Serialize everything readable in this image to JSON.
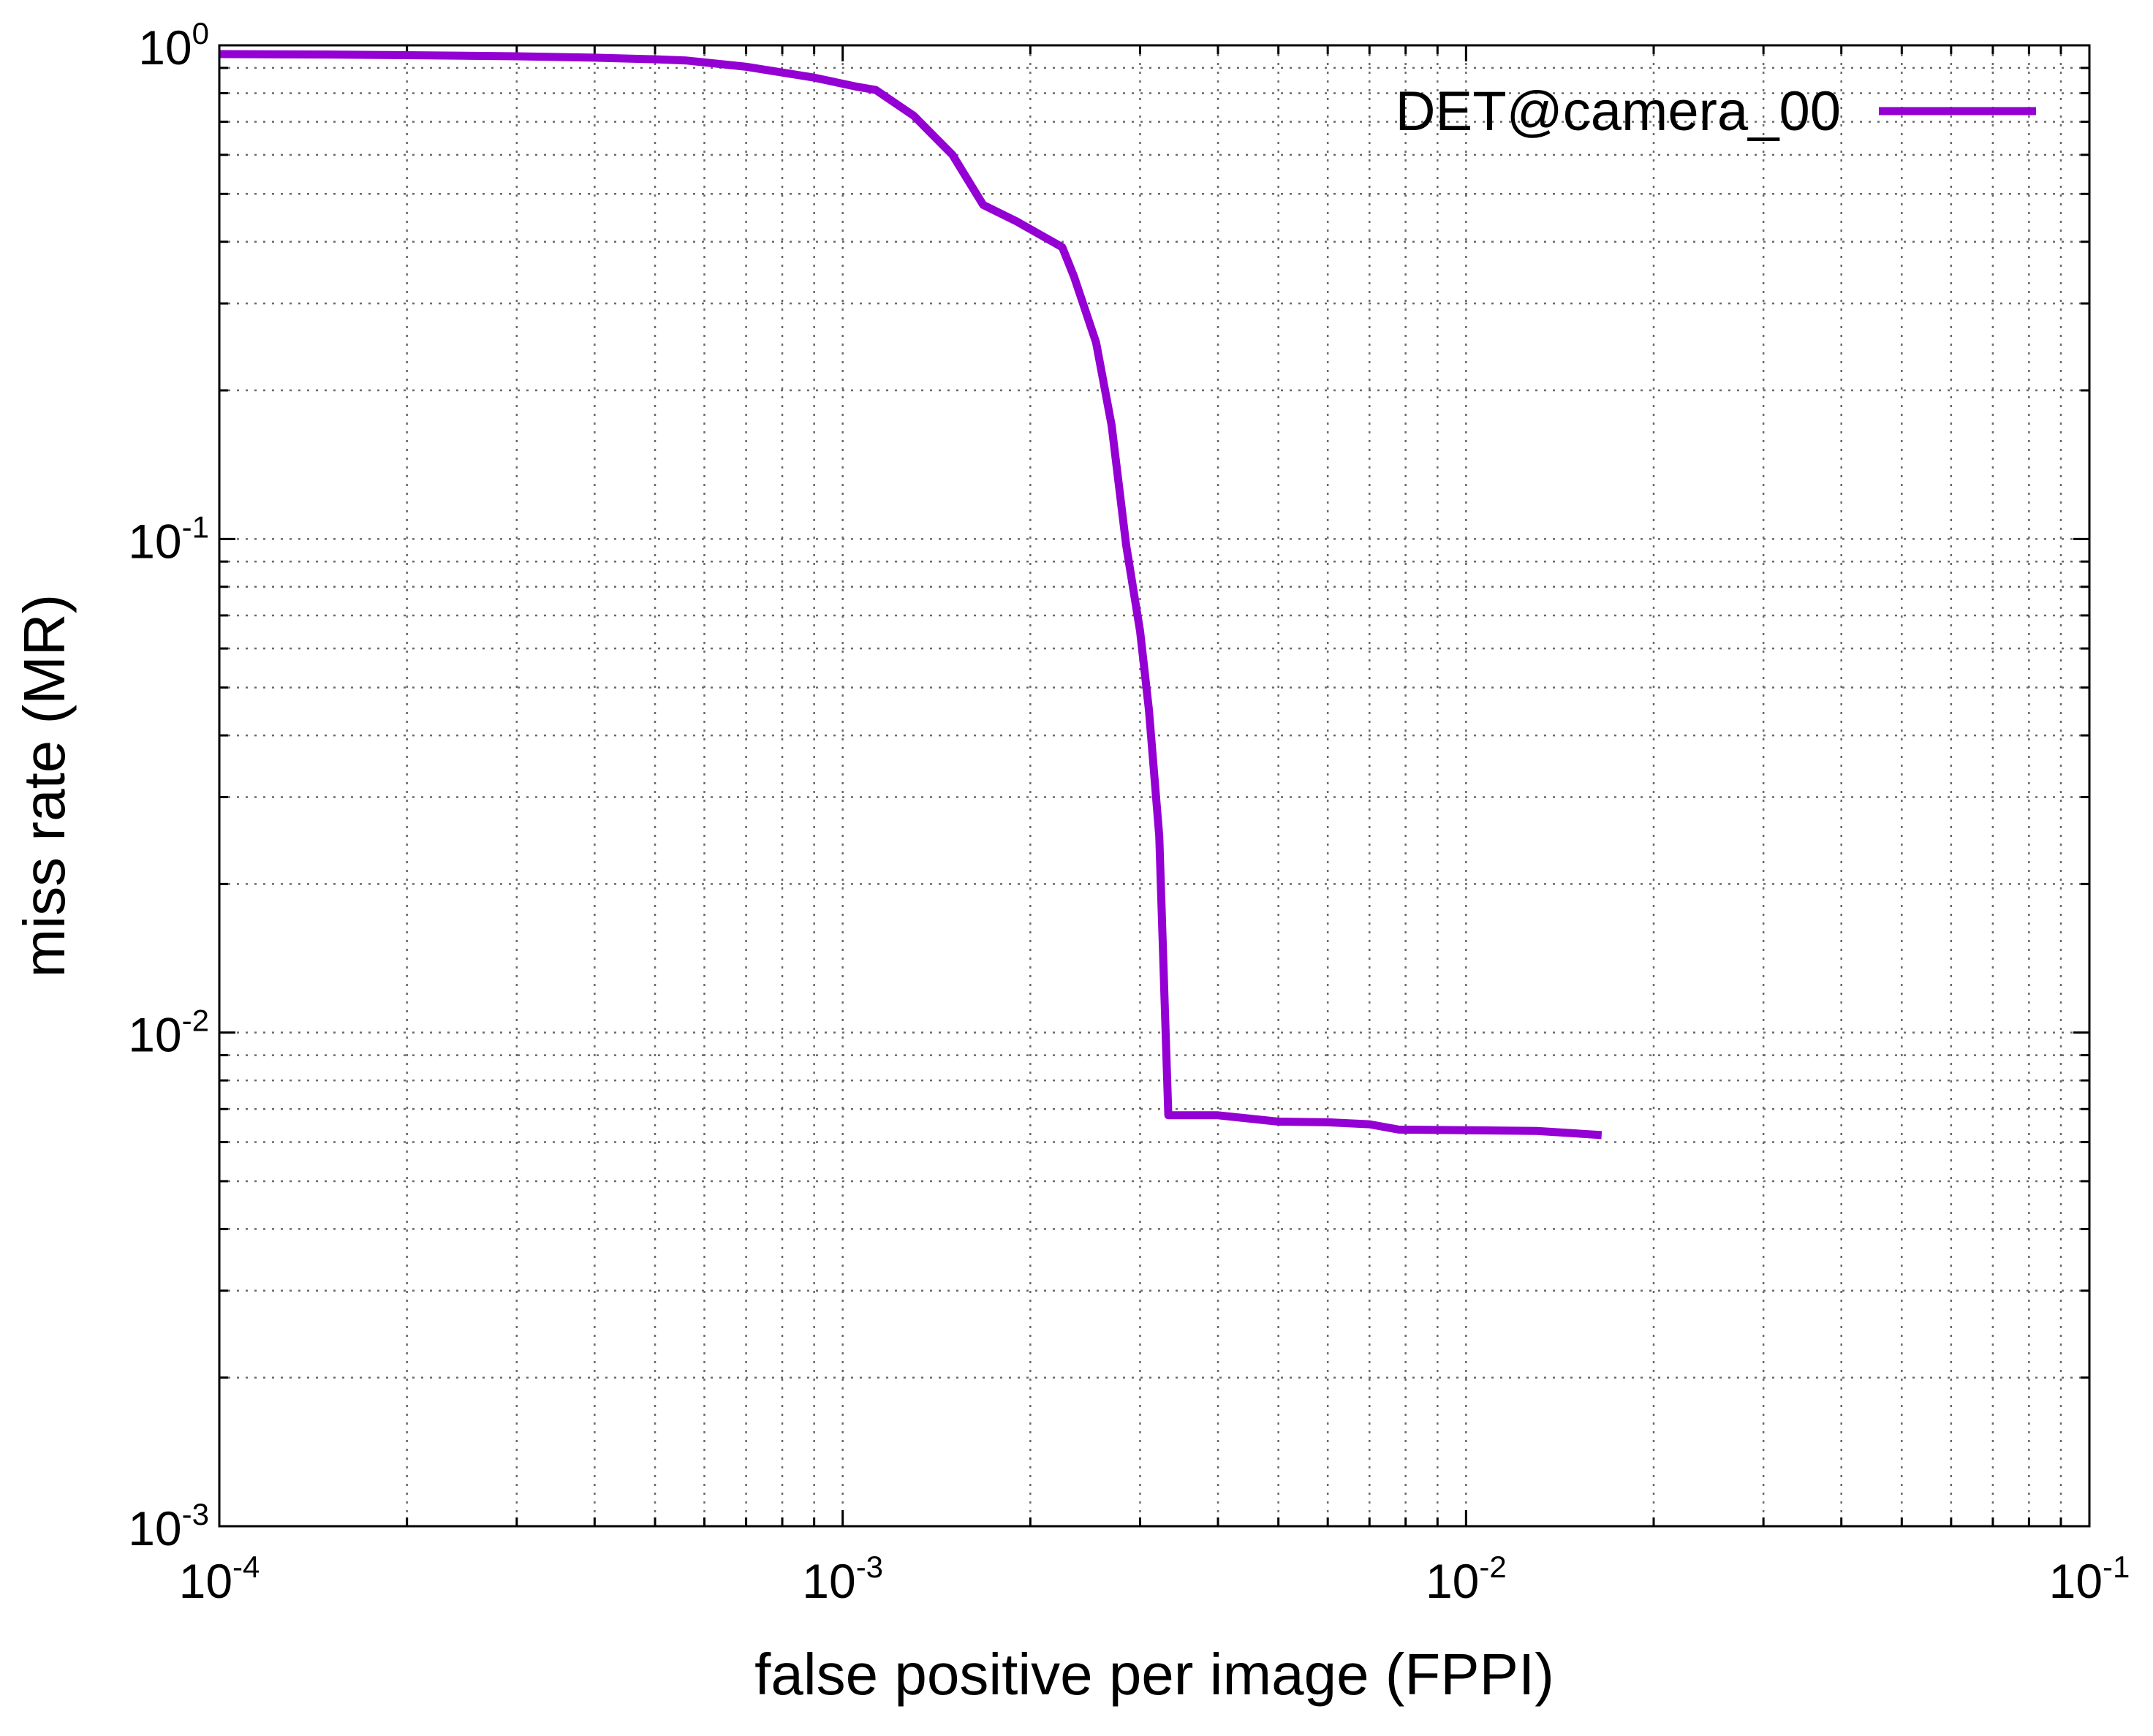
{
  "chart_data": {
    "type": "line",
    "xlabel": "false positive per image (FPPI)",
    "ylabel": "miss rate (MR)",
    "xscale": "log",
    "yscale": "log",
    "xlim": [
      0.0001,
      0.1
    ],
    "ylim": [
      0.001,
      1
    ],
    "grid": true,
    "legend_position": "top-right",
    "x_ticks": [
      {
        "base": "10",
        "exp": "-4",
        "value": 0.0001
      },
      {
        "base": "10",
        "exp": "-3",
        "value": 0.001
      },
      {
        "base": "10",
        "exp": "-2",
        "value": 0.01
      },
      {
        "base": "10",
        "exp": "-1",
        "value": 0.1
      }
    ],
    "y_ticks": [
      {
        "base": "10",
        "exp": "-3",
        "value": 0.001
      },
      {
        "base": "10",
        "exp": "-2",
        "value": 0.01
      },
      {
        "base": "10",
        "exp": "-1",
        "value": 0.1
      },
      {
        "base": "10",
        "exp": "0",
        "value": 1
      }
    ],
    "series": [
      {
        "name": "DET@camera_00",
        "color": "#9400d3",
        "points": [
          [
            0.0001,
            0.96
          ],
          [
            0.00015,
            0.958
          ],
          [
            0.0002,
            0.955
          ],
          [
            0.0003,
            0.95
          ],
          [
            0.0004,
            0.944
          ],
          [
            0.0005,
            0.937
          ],
          [
            0.00056,
            0.932
          ],
          [
            0.0007,
            0.905
          ],
          [
            0.0009,
            0.86
          ],
          [
            0.00105,
            0.825
          ],
          [
            0.00113,
            0.812
          ],
          [
            0.0013,
            0.72
          ],
          [
            0.0015,
            0.6
          ],
          [
            0.00168,
            0.475
          ],
          [
            0.0019,
            0.44
          ],
          [
            0.00225,
            0.39
          ],
          [
            0.00235,
            0.34
          ],
          [
            0.00255,
            0.25
          ],
          [
            0.0027,
            0.17
          ],
          [
            0.00285,
            0.097
          ],
          [
            0.003,
            0.065
          ],
          [
            0.0031,
            0.045
          ],
          [
            0.00322,
            0.025
          ],
          [
            0.00333,
            0.0068
          ],
          [
            0.004,
            0.0068
          ],
          [
            0.005,
            0.0066
          ],
          [
            0.006,
            0.00658
          ],
          [
            0.007,
            0.00652
          ],
          [
            0.0078,
            0.00636
          ],
          [
            0.01,
            0.00634
          ],
          [
            0.013,
            0.00632
          ],
          [
            0.0165,
            0.0062
          ]
        ]
      }
    ]
  }
}
